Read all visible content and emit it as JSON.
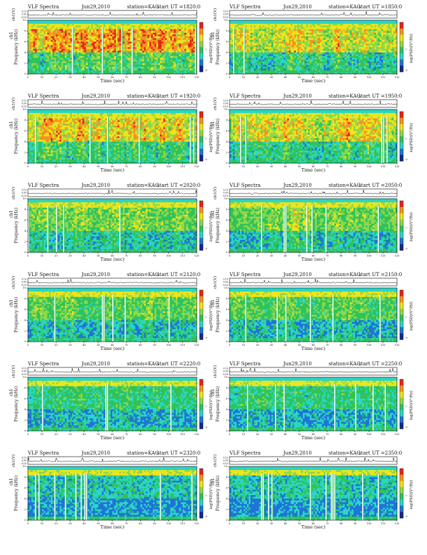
{
  "chart_data": [
    {
      "type": "heatmap",
      "panel_title": "VLF Spectra",
      "date": "Jun29,2010",
      "station": "station=KAG",
      "start": "start  UT =1820:0",
      "activity": 0.8
    },
    {
      "type": "heatmap",
      "panel_title": "VLF Spectra",
      "date": "Jun29,2010",
      "station": "station=KAG",
      "start": "start  UT =1850:0",
      "activity": 0.7
    },
    {
      "type": "heatmap",
      "panel_title": "VLF Spectra",
      "date": "Jun29,2010",
      "station": "station=KAG",
      "start": "start  UT =1920:0",
      "activity": 0.72
    },
    {
      "type": "heatmap",
      "panel_title": "VLF Spectra",
      "date": "Jun29,2010",
      "station": "station=KAG",
      "start": "start  UT =1950:0",
      "activity": 0.7
    },
    {
      "type": "heatmap",
      "panel_title": "VLF Spectra",
      "date": "Jun29,2010",
      "station": "station=KAG",
      "start": "start  UT =2020:0",
      "activity": 0.55
    },
    {
      "type": "heatmap",
      "panel_title": "VLF Spectra",
      "date": "Jun29,2010",
      "station": "station=KAG",
      "start": "start  UT =2050:0",
      "activity": 0.55
    },
    {
      "type": "heatmap",
      "panel_title": "VLF Spectra",
      "date": "Jun29,2010",
      "station": "station=KAG",
      "start": "start  UT =2120:0",
      "activity": 0.5
    },
    {
      "type": "heatmap",
      "panel_title": "VLF Spectra",
      "date": "Jun29,2010",
      "station": "station=KAG",
      "start": "start  UT =2150:0",
      "activity": 0.5
    },
    {
      "type": "heatmap",
      "panel_title": "VLF Spectra",
      "date": "Jun29,2010",
      "station": "station=KAG",
      "start": "start  UT =2220:0",
      "activity": 0.4
    },
    {
      "type": "heatmap",
      "panel_title": "VLF Spectra",
      "date": "Jun29,2010",
      "station": "station=KAG",
      "start": "start  UT =2250:0",
      "activity": 0.4
    },
    {
      "type": "heatmap",
      "panel_title": "VLF Spectra",
      "date": "Jun29,2010",
      "station": "station=KAG",
      "start": "start  UT =2320:0",
      "activity": 0.3
    },
    {
      "type": "heatmap",
      "panel_title": "VLF Spectra",
      "date": "Jun29,2010",
      "station": "station=KAG",
      "start": "start  UT =2350:0",
      "activity": 0.3
    }
  ],
  "axes": {
    "ylabel_top": "ch1(V)",
    "ylabel_main_1": "ch1",
    "ylabel_main_2": "Frequency (kHz)",
    "xlabel": "Time (sec)",
    "colorbar_label": "log(PSD)(V²/Hz)",
    "time_ticks": [
      "0",
      "10",
      "20",
      "30",
      "40",
      "50",
      "60",
      "70",
      "80",
      "90",
      "100",
      "110",
      "120"
    ],
    "freq_ticks": [
      "0",
      "2",
      "4",
      "6",
      "8",
      "10"
    ],
    "volt_ticks": [
      "0.10",
      "0.00",
      "-0.10"
    ],
    "colorbar_ticks": [
      "-7",
      "-8"
    ],
    "time_range": [
      0,
      120
    ],
    "freq_range": [
      0,
      10
    ]
  },
  "colors": {
    "red": "#e8241a",
    "orange": "#f7921e",
    "yellow": "#f2e51a",
    "lightgreen": "#8fd84a",
    "green": "#2fc35a",
    "cyan": "#2ad6c8",
    "blue": "#1f74d6",
    "navy": "#142b8c"
  }
}
